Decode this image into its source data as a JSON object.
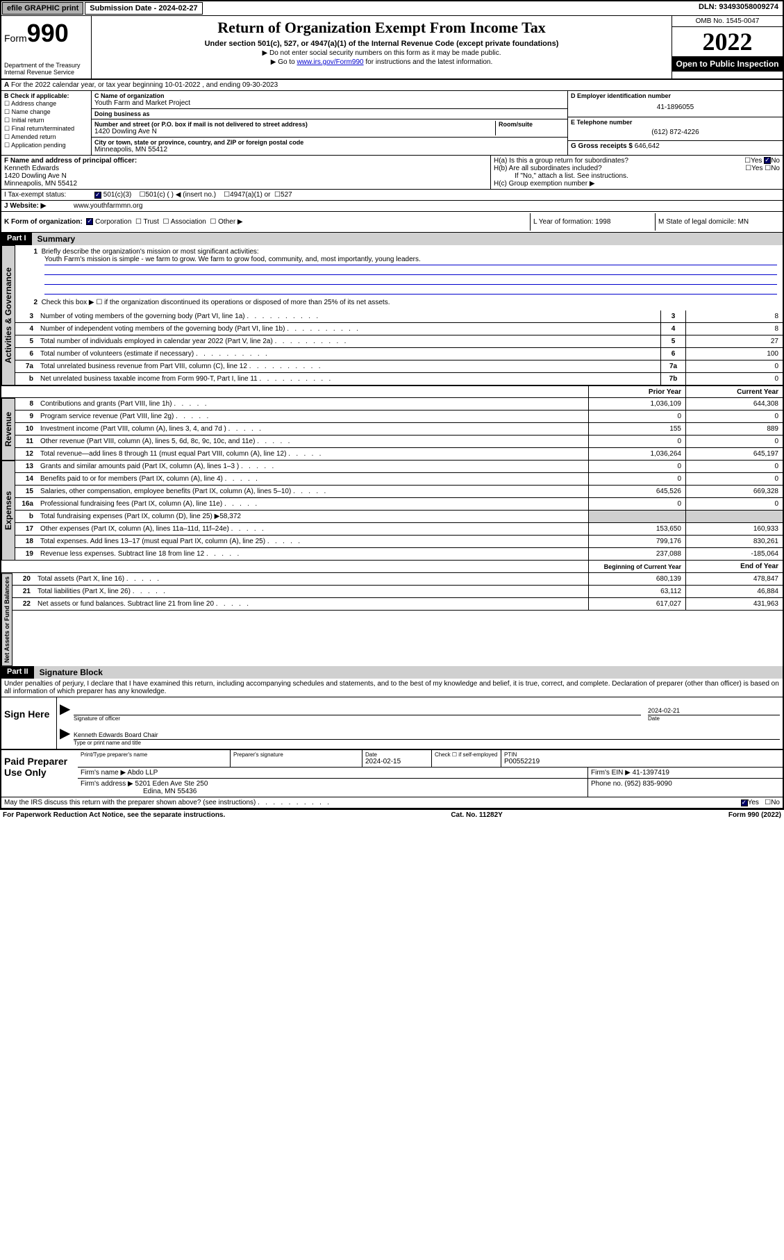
{
  "topbar": {
    "efile": "efile GRAPHIC print",
    "submission_label": "Submission Date - 2024-02-27",
    "dln": "DLN: 93493058009274"
  },
  "header": {
    "form_prefix": "Form",
    "form_number": "990",
    "dept": "Department of the Treasury",
    "irs": "Internal Revenue Service",
    "title": "Return of Organization Exempt From Income Tax",
    "subtitle": "Under section 501(c), 527, or 4947(a)(1) of the Internal Revenue Code (except private foundations)",
    "note1": "▶ Do not enter social security numbers on this form as it may be made public.",
    "note2_prefix": "▶ Go to ",
    "note2_link": "www.irs.gov/Form990",
    "note2_suffix": " for instructions and the latest information.",
    "omb": "OMB No. 1545-0047",
    "year": "2022",
    "inspection": "Open to Public Inspection"
  },
  "section_a": {
    "text": "For the 2022 calendar year, or tax year beginning 10-01-2022   , and ending 09-30-2023"
  },
  "section_b": {
    "label": "B Check if applicable:",
    "opts": [
      "Address change",
      "Name change",
      "Initial return",
      "Final return/terminated",
      "Amended return",
      "Application pending"
    ]
  },
  "section_c": {
    "name_label": "C Name of organization",
    "name": "Youth Farm and Market Project",
    "dba_label": "Doing business as",
    "dba": "",
    "addr_label": "Number and street (or P.O. box if mail is not delivered to street address)",
    "room_label": "Room/suite",
    "addr": "1420 Dowling Ave N",
    "city_label": "City or town, state or province, country, and ZIP or foreign postal code",
    "city": "Minneapolis, MN  55412"
  },
  "section_d": {
    "label": "D Employer identification number",
    "val": "41-1896055"
  },
  "section_e": {
    "label": "E Telephone number",
    "val": "(612) 872-4226"
  },
  "section_g": {
    "label": "G Gross receipts $",
    "val": "646,642"
  },
  "section_f": {
    "label": "F Name and address of principal officer:",
    "name": "Kenneth Edwards",
    "addr": "1420 Dowling Ave N",
    "city": "Minneapolis, MN  55412"
  },
  "section_h": {
    "a": "H(a)  Is this a group return for subordinates?",
    "b": "H(b)  Are all subordinates included?",
    "b_note": "If \"No,\" attach a list. See instructions.",
    "c": "H(c)  Group exemption number ▶",
    "yes": "Yes",
    "no": "No"
  },
  "section_i": {
    "label": "I    Tax-exempt status:",
    "opt1": "501(c)(3)",
    "opt2": "501(c) (  ) ◀ (insert no.)",
    "opt3": "4947(a)(1) or",
    "opt4": "527"
  },
  "section_j": {
    "label": "J   Website: ▶",
    "val": "www.youthfarmmn.org"
  },
  "section_k": {
    "label": "K Form of organization:",
    "opts": [
      "Corporation",
      "Trust",
      "Association",
      "Other ▶"
    ]
  },
  "section_l": {
    "label": "L Year of formation: 1998"
  },
  "section_m": {
    "label": "M State of legal domicile: MN"
  },
  "part1": {
    "header": "Part I",
    "title": "Summary",
    "line1_label": "Briefly describe the organization's mission or most significant activities:",
    "line1_text": "Youth Farm's mission is simple - we farm to grow. We farm to grow food, community, and, most importantly, young leaders.",
    "line2": "Check this box ▶ ☐  if the organization discontinued its operations or disposed of more than 25% of its net assets.",
    "sections": {
      "gov": "Activities & Governance",
      "rev": "Revenue",
      "exp": "Expenses",
      "net": "Net Assets or Fund Balances"
    },
    "lines_single": [
      {
        "n": "3",
        "t": "Number of voting members of the governing body (Part VI, line 1a)",
        "box": "3",
        "v": "8"
      },
      {
        "n": "4",
        "t": "Number of independent voting members of the governing body (Part VI, line 1b)",
        "box": "4",
        "v": "8"
      },
      {
        "n": "5",
        "t": "Total number of individuals employed in calendar year 2022 (Part V, line 2a)",
        "box": "5",
        "v": "27"
      },
      {
        "n": "6",
        "t": "Total number of volunteers (estimate if necessary)",
        "box": "6",
        "v": "100"
      },
      {
        "n": "7a",
        "t": "Total unrelated business revenue from Part VIII, column (C), line 12",
        "box": "7a",
        "v": "0"
      },
      {
        "n": "b",
        "t": "Net unrelated business taxable income from Form 990-T, Part I, line 11",
        "box": "7b",
        "v": "0"
      }
    ],
    "col_prior": "Prior Year",
    "col_current": "Current Year",
    "lines_rev": [
      {
        "n": "8",
        "t": "Contributions and grants (Part VIII, line 1h)",
        "p": "1,036,109",
        "c": "644,308"
      },
      {
        "n": "9",
        "t": "Program service revenue (Part VIII, line 2g)",
        "p": "0",
        "c": "0"
      },
      {
        "n": "10",
        "t": "Investment income (Part VIII, column (A), lines 3, 4, and 7d )",
        "p": "155",
        "c": "889"
      },
      {
        "n": "11",
        "t": "Other revenue (Part VIII, column (A), lines 5, 6d, 8c, 9c, 10c, and 11e)",
        "p": "0",
        "c": "0"
      },
      {
        "n": "12",
        "t": "Total revenue—add lines 8 through 11 (must equal Part VIII, column (A), line 12)",
        "p": "1,036,264",
        "c": "645,197"
      }
    ],
    "lines_exp": [
      {
        "n": "13",
        "t": "Grants and similar amounts paid (Part IX, column (A), lines 1–3 )",
        "p": "0",
        "c": "0"
      },
      {
        "n": "14",
        "t": "Benefits paid to or for members (Part IX, column (A), line 4)",
        "p": "0",
        "c": "0"
      },
      {
        "n": "15",
        "t": "Salaries, other compensation, employee benefits (Part IX, column (A), lines 5–10)",
        "p": "645,526",
        "c": "669,328"
      },
      {
        "n": "16a",
        "t": "Professional fundraising fees (Part IX, column (A), line 11e)",
        "p": "0",
        "c": "0"
      }
    ],
    "line16b": {
      "n": "b",
      "t": "Total fundraising expenses (Part IX, column (D), line 25) ▶58,372"
    },
    "lines_exp2": [
      {
        "n": "17",
        "t": "Other expenses (Part IX, column (A), lines 11a–11d, 11f–24e)",
        "p": "153,650",
        "c": "160,933"
      },
      {
        "n": "18",
        "t": "Total expenses. Add lines 13–17 (must equal Part IX, column (A), line 25)",
        "p": "799,176",
        "c": "830,261"
      },
      {
        "n": "19",
        "t": "Revenue less expenses. Subtract line 18 from line 12",
        "p": "237,088",
        "c": "-185,064"
      }
    ],
    "col_begin": "Beginning of Current Year",
    "col_end": "End of Year",
    "lines_net": [
      {
        "n": "20",
        "t": "Total assets (Part X, line 16)",
        "p": "680,139",
        "c": "478,847"
      },
      {
        "n": "21",
        "t": "Total liabilities (Part X, line 26)",
        "p": "63,112",
        "c": "46,884"
      },
      {
        "n": "22",
        "t": "Net assets or fund balances. Subtract line 21 from line 20",
        "p": "617,027",
        "c": "431,963"
      }
    ]
  },
  "part2": {
    "header": "Part II",
    "title": "Signature Block",
    "declaration": "Under penalties of perjury, I declare that I have examined this return, including accompanying schedules and statements, and to the best of my knowledge and belief, it is true, correct, and complete. Declaration of preparer (other than officer) is based on all information of which preparer has any knowledge.",
    "sign_here": "Sign Here",
    "sig_officer": "Signature of officer",
    "sig_date": "2024-02-21",
    "date_label": "Date",
    "officer_name": "Kenneth Edwards  Board Chair",
    "type_name": "Type or print name and title",
    "paid_prep": "Paid Preparer Use Only",
    "prep_name_label": "Print/Type preparer's name",
    "prep_sig_label": "Preparer's signature",
    "prep_date_label": "Date",
    "prep_date": "2024-02-15",
    "prep_check": "Check ☐ if self-employed",
    "ptin_label": "PTIN",
    "ptin": "P00552219",
    "firm_name_label": "Firm's name    ▶",
    "firm_name": "Abdo LLP",
    "firm_ein_label": "Firm's EIN ▶",
    "firm_ein": "41-1397419",
    "firm_addr_label": "Firm's address ▶",
    "firm_addr1": "5201 Eden Ave Ste 250",
    "firm_addr2": "Edina, MN  55436",
    "phone_label": "Phone no.",
    "phone": "(952) 835-9090",
    "may_irs": "May the IRS discuss this return with the preparer shown above? (see instructions)",
    "yes": "Yes",
    "no": "No"
  },
  "footer": {
    "left": "For Paperwork Reduction Act Notice, see the separate instructions.",
    "mid": "Cat. No. 11282Y",
    "right": "Form 990 (2022)"
  }
}
